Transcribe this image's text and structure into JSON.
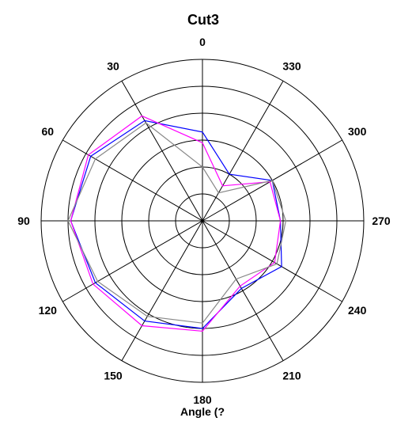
{
  "chart_data": {
    "type": "line",
    "subtype": "polar",
    "title": "Cut3",
    "xlabel": "Angle  (?",
    "ylabel": "",
    "angle_direction": "counterclockwise",
    "zero_position": "top",
    "angle_ticks": [
      0,
      30,
      60,
      90,
      120,
      150,
      180,
      210,
      240,
      270,
      300,
      330
    ],
    "angle_tick_labels": [
      "0",
      "30",
      "60",
      "90",
      "120",
      "150",
      "180",
      "210",
      "240",
      "270",
      "300",
      "330"
    ],
    "radial_grid_rings": 6,
    "radial_range": [
      0,
      6
    ],
    "grid": true,
    "series": [
      {
        "color": "#0000ff",
        "points": [
          [
            0,
            3.3
          ],
          [
            30,
            4.3
          ],
          [
            60,
            4.8
          ],
          [
            90,
            4.9
          ],
          [
            120,
            4.6
          ],
          [
            150,
            4.3
          ],
          [
            180,
            4.0
          ],
          [
            210,
            2.9
          ],
          [
            240,
            3.4
          ],
          [
            270,
            2.9
          ],
          [
            300,
            3.0
          ],
          [
            330,
            2.0
          ],
          [
            360,
            3.3
          ]
        ]
      },
      {
        "color": "#ff00ff",
        "points": [
          [
            0,
            2.9
          ],
          [
            30,
            4.5
          ],
          [
            60,
            4.9
          ],
          [
            90,
            4.9
          ],
          [
            120,
            4.7
          ],
          [
            150,
            4.5
          ],
          [
            180,
            4.1
          ],
          [
            210,
            2.8
          ],
          [
            240,
            3.1
          ],
          [
            270,
            2.9
          ],
          [
            300,
            2.9
          ],
          [
            330,
            1.5
          ],
          [
            360,
            2.9
          ]
        ]
      },
      {
        "color": "#888888",
        "points": [
          [
            0,
            2.0
          ],
          [
            30,
            4.2
          ],
          [
            60,
            4.6
          ],
          [
            90,
            5.0
          ],
          [
            120,
            4.5
          ],
          [
            150,
            4.1
          ],
          [
            180,
            3.8
          ],
          [
            210,
            2.5
          ],
          [
            240,
            3.2
          ],
          [
            270,
            3.1
          ],
          [
            300,
            3.0
          ],
          [
            330,
            1.2
          ],
          [
            360,
            2.0
          ]
        ]
      }
    ]
  }
}
